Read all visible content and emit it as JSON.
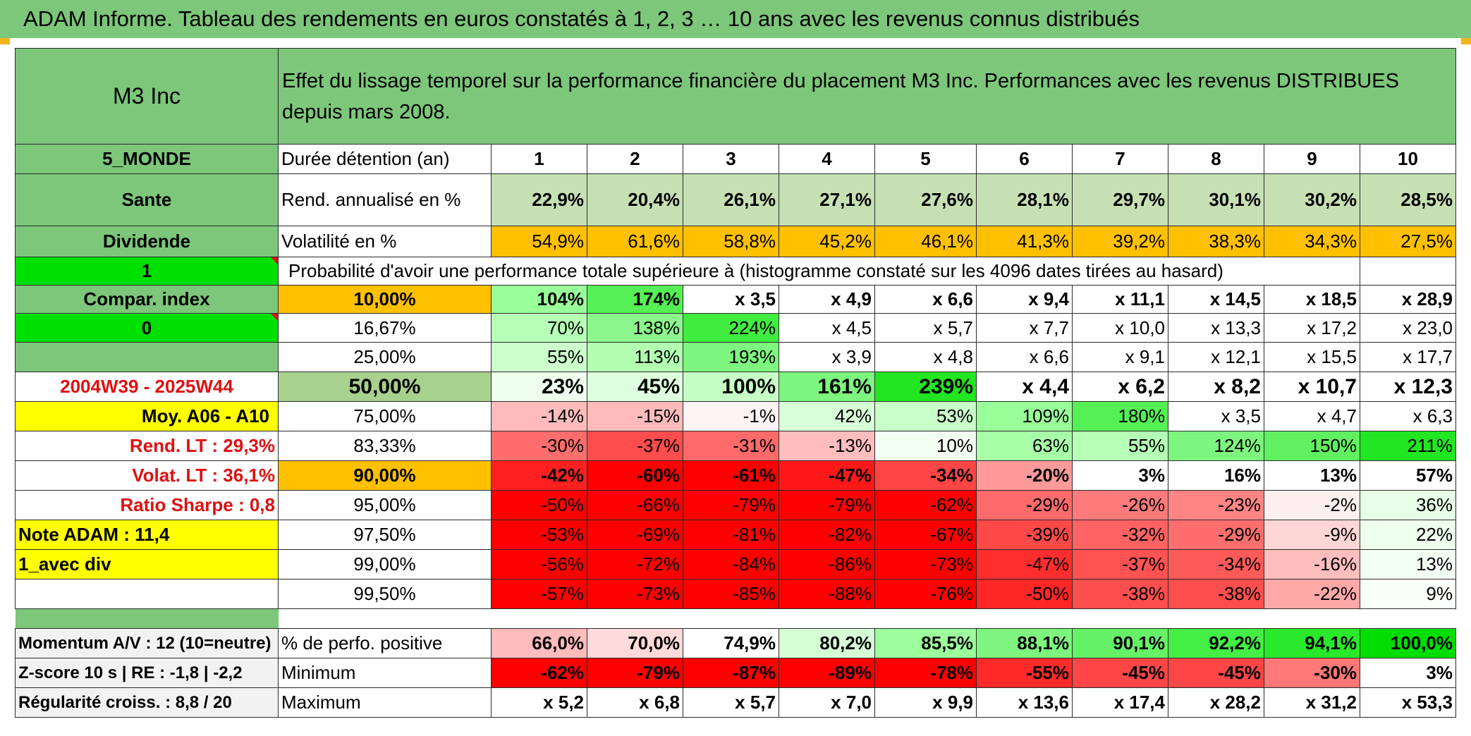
{
  "title": "ADAM Informe. Tableau des rendements en euros constatés à 1, 2, 3 … 10 ans avec les revenus connus distribués",
  "header": {
    "fund": "M3 Inc",
    "description": "Effet du lissage temporel sur la performance financière du placement M3 Inc. Performances avec les revenus DISTRIBUES depuis mars 2008."
  },
  "left_labels": {
    "region": "5_MONDE",
    "sector": "Sante",
    "income": "Dividende",
    "flag1": "1",
    "compar": "Compar. index",
    "flag2": "0",
    "blank": "",
    "period": "2004W39 - 2025W44",
    "moy": "Moy. A06 - A10",
    "rend_lt": "Rend. LT :    29,3%",
    "volat_lt": "Volat. LT :    36,1%",
    "sharpe": "Ratio Sharpe :    0,8",
    "note": "Note ADAM : 11,4",
    "avec": "1_avec div",
    "momentum": "Momentum A/V : 12 (10=neutre)",
    "zscore": "Z-score 10 s | RE : -1,8 | -2,2",
    "regularite": "Régularité croiss. : 8,8 / 20"
  },
  "rows": {
    "duree": {
      "label": "Durée détention (an)",
      "values": [
        "1",
        "2",
        "3",
        "4",
        "5",
        "6",
        "7",
        "8",
        "9",
        "10"
      ]
    },
    "rend": {
      "label": "Rend. annualisé en %",
      "values": [
        "22,9%",
        "20,4%",
        "26,1%",
        "27,1%",
        "27,6%",
        "28,1%",
        "29,7%",
        "30,1%",
        "30,2%",
        "28,5%"
      ]
    },
    "vol": {
      "label": "Volatilité en %",
      "values": [
        "54,9%",
        "61,6%",
        "58,8%",
        "45,2%",
        "46,1%",
        "41,3%",
        "39,2%",
        "38,3%",
        "34,3%",
        "27,5%"
      ]
    },
    "proba_title": "Probabilité d'avoir une performance totale supérieure à (histogramme constaté sur les 4096 dates tirées au hasard)"
  },
  "prob_rows": [
    {
      "p": "10,00%",
      "values": [
        "104%",
        "174%",
        "x 3,5",
        "x 4,9",
        "x 6,6",
        "x 9,4",
        "x 11,1",
        "x 14,5",
        "x 18,5",
        "x 28,9"
      ]
    },
    {
      "p": "16,67%",
      "values": [
        "70%",
        "138%",
        "224%",
        "x 4,5",
        "x 5,7",
        "x 7,7",
        "x 10,0",
        "x 13,3",
        "x 17,2",
        "x 23,0"
      ]
    },
    {
      "p": "25,00%",
      "values": [
        "55%",
        "113%",
        "193%",
        "x 3,9",
        "x 4,8",
        "x 6,6",
        "x 9,1",
        "x 12,1",
        "x 15,5",
        "x 17,7"
      ]
    },
    {
      "p": "50,00%",
      "values": [
        "23%",
        "45%",
        "100%",
        "161%",
        "239%",
        "x 4,4",
        "x 6,2",
        "x 8,2",
        "x 10,7",
        "x 12,3"
      ]
    },
    {
      "p": "75,00%",
      "values": [
        "-14%",
        "-15%",
        "-1%",
        "42%",
        "53%",
        "109%",
        "180%",
        "x 3,5",
        "x 4,7",
        "x 6,3"
      ]
    },
    {
      "p": "83,33%",
      "values": [
        "-30%",
        "-37%",
        "-31%",
        "-13%",
        "10%",
        "63%",
        "55%",
        "124%",
        "150%",
        "211%"
      ]
    },
    {
      "p": "90,00%",
      "values": [
        "-42%",
        "-60%",
        "-61%",
        "-47%",
        "-34%",
        "-20%",
        "3%",
        "16%",
        "13%",
        "57%"
      ]
    },
    {
      "p": "95,00%",
      "values": [
        "-50%",
        "-66%",
        "-79%",
        "-79%",
        "-62%",
        "-29%",
        "-26%",
        "-23%",
        "-2%",
        "36%"
      ]
    },
    {
      "p": "97,50%",
      "values": [
        "-53%",
        "-69%",
        "-81%",
        "-82%",
        "-67%",
        "-39%",
        "-32%",
        "-29%",
        "-9%",
        "22%"
      ]
    },
    {
      "p": "99,00%",
      "values": [
        "-56%",
        "-72%",
        "-84%",
        "-86%",
        "-73%",
        "-47%",
        "-37%",
        "-34%",
        "-16%",
        "13%"
      ]
    },
    {
      "p": "99,50%",
      "values": [
        "-57%",
        "-73%",
        "-85%",
        "-88%",
        "-76%",
        "-50%",
        "-38%",
        "-38%",
        "-22%",
        "9%"
      ]
    }
  ],
  "bottom_rows": [
    {
      "label": "% de perfo. positive",
      "values": [
        "66,0%",
        "70,0%",
        "74,9%",
        "80,2%",
        "85,5%",
        "88,1%",
        "90,1%",
        "92,2%",
        "94,1%",
        "100,0%"
      ]
    },
    {
      "label": "Minimum",
      "values": [
        "-62%",
        "-79%",
        "-87%",
        "-89%",
        "-78%",
        "-55%",
        "-45%",
        "-45%",
        "-30%",
        "3%"
      ]
    },
    {
      "label": "Maximum",
      "values": [
        "x 5,2",
        "x 6,8",
        "x 5,7",
        "x 7,0",
        "x 9,9",
        "x 13,6",
        "x 17,4",
        "x 28,2",
        "x 31,2",
        "x 53,3"
      ]
    }
  ],
  "colors": {
    "header_green": "#7cc77a",
    "bright_green": "#00e000",
    "orange": "#ffc000",
    "yellow": "#ffff00",
    "light_green": "#c6e0b4",
    "red": "#ff0000",
    "label_red": "#e01010"
  },
  "cell_colors": {
    "prob": [
      [
        "#99ff99",
        "#55f055",
        "#fff",
        "#fff",
        "#fff",
        "#fff",
        "#fff",
        "#fff",
        "#fff",
        "#fff"
      ],
      [
        "#b6ffb6",
        "#8cf78c",
        "#40ec40",
        "#fff",
        "#fff",
        "#fff",
        "#fff",
        "#fff",
        "#fff",
        "#fff"
      ],
      [
        "#ccffcc",
        "#b2ffb2",
        "#7ef57e",
        "#fff",
        "#fff",
        "#fff",
        "#fff",
        "#fff",
        "#fff",
        "#fff"
      ],
      [
        "#eeffee",
        "#ddffdd",
        "#c6ffc6",
        "#7ef57e",
        "#22e622",
        "#fff",
        "#fff",
        "#fff",
        "#fff",
        "#fff"
      ],
      [
        "#ffbbbb",
        "#ffbbbb",
        "#fff4f4",
        "#d8ffd8",
        "#c9ffc9",
        "#99ff99",
        "#55f055",
        "#fff",
        "#fff",
        "#fff"
      ],
      [
        "#ff6e6e",
        "#ff4c4c",
        "#ff6a6a",
        "#ffbdbd",
        "#f4fff4",
        "#a8ffa8",
        "#b6ffb6",
        "#7ef57e",
        "#60f060",
        "#22e622"
      ],
      [
        "#ff2020",
        "#ff0000",
        "#ff0000",
        "#ff1818",
        "#ff4545",
        "#ff9a9a",
        "#fff",
        "#fff",
        "#fff",
        "#fff"
      ],
      [
        "#ff0000",
        "#ff0000",
        "#ff0000",
        "#ff0000",
        "#ff0000",
        "#ff6a6a",
        "#ff7a7a",
        "#ff8585",
        "#fff0f0",
        "#e6ffe6"
      ],
      [
        "#ff0000",
        "#ff0000",
        "#ff0000",
        "#ff0000",
        "#ff0000",
        "#ff4848",
        "#ff6262",
        "#ff6e6e",
        "#ffd6d6",
        "#eeffee"
      ],
      [
        "#ff0000",
        "#ff0000",
        "#ff0000",
        "#ff0000",
        "#ff0000",
        "#ff2e2e",
        "#ff5252",
        "#ff5a5a",
        "#ffbebe",
        "#f4fff4"
      ],
      [
        "#ff0000",
        "#ff0000",
        "#ff0000",
        "#ff0000",
        "#ff0000",
        "#ff2626",
        "#ff4e4e",
        "#ff4e4e",
        "#ffa8a8",
        "#f8fff8"
      ]
    ],
    "positive": [
      "#ffbcbc",
      "#ffdada",
      "#fff",
      "#d6ffd6",
      "#9cff9c",
      "#7ef57e",
      "#66f266",
      "#44ee44",
      "#2ae82a",
      "#00dd00"
    ],
    "minimum": [
      "#ff0000",
      "#ff0000",
      "#ff0000",
      "#ff0000",
      "#ff0000",
      "#ff2a2a",
      "#ff4646",
      "#ff4646",
      "#ff7777",
      "#fff"
    ]
  }
}
